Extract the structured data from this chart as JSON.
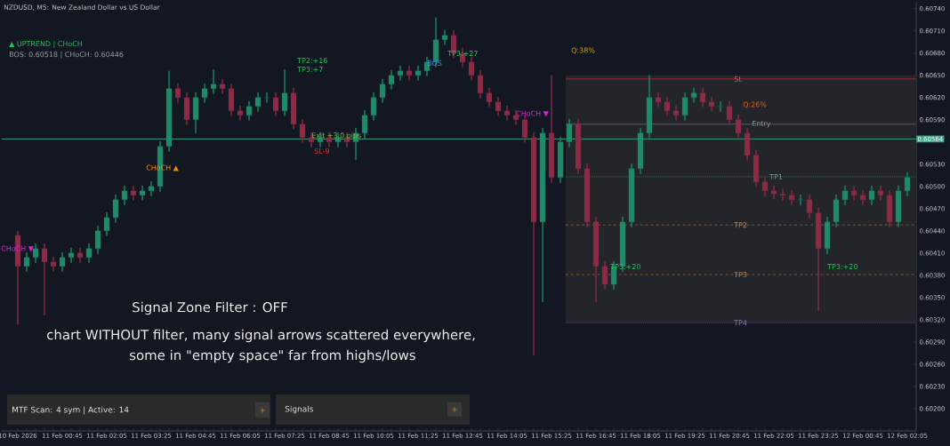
{
  "chart_data": {
    "type": "candlestick",
    "title": "NZDUSD, M5:  New Zealand Dollar vs US Dollar",
    "categories": [
      "10 Feb 2026",
      null,
      null,
      null,
      null,
      "11 Feb 00:45",
      null,
      null,
      null,
      null,
      "11 Feb 02:05",
      null,
      null,
      null,
      null,
      "11 Feb 03:25",
      null,
      null,
      null,
      null,
      "11 Feb 04:45",
      null,
      null,
      null,
      null,
      "11 Feb 06:05",
      null,
      null,
      null,
      null,
      "11 Feb 07:25",
      null,
      null,
      null,
      null,
      "11 Feb 08:45",
      null,
      null,
      null,
      null,
      "11 Feb 10:05",
      null,
      null,
      null,
      null,
      "11 Feb 11:25",
      null,
      null,
      null,
      null,
      "11 Feb 12:45",
      null,
      null,
      null,
      null,
      "11 Feb 14:05",
      null,
      null,
      null,
      null,
      "11 Feb 15:25",
      null,
      null,
      null,
      null,
      "11 Feb 16:45",
      null,
      null,
      null,
      null,
      "11 Feb 18:05",
      null,
      null,
      null,
      null,
      "11 Feb 19:25",
      null,
      null,
      null,
      null,
      "11 Feb 20:45",
      null,
      null,
      null,
      null,
      "11 Feb 22:05",
      null,
      null,
      null,
      null,
      "11 Feb 23:25",
      null,
      null,
      null,
      null,
      "12 Feb 00:45",
      null,
      null,
      null,
      null,
      "12 Feb 02:05"
    ],
    "ohlc": [
      [
        0.60434,
        0.6044,
        0.60314,
        0.60392
      ],
      [
        0.60392,
        0.60411,
        0.60385,
        0.60404
      ],
      [
        0.60404,
        0.60423,
        0.60397,
        0.60416
      ],
      [
        0.60416,
        0.60423,
        0.60326,
        0.60398
      ],
      [
        0.60398,
        0.60405,
        0.60385,
        0.60392
      ],
      [
        0.60392,
        0.60411,
        0.60385,
        0.60404
      ],
      [
        0.60404,
        0.60417,
        0.60397,
        0.6041
      ],
      [
        0.6041,
        0.60417,
        0.60397,
        0.60404
      ],
      [
        0.60404,
        0.60423,
        0.60397,
        0.60416
      ],
      [
        0.60416,
        0.60447,
        0.60409,
        0.6044
      ],
      [
        0.6044,
        0.60465,
        0.60433,
        0.60458
      ],
      [
        0.60458,
        0.60489,
        0.60451,
        0.60482
      ],
      [
        0.60482,
        0.60501,
        0.60475,
        0.60494
      ],
      [
        0.60494,
        0.60501,
        0.60481,
        0.60488
      ],
      [
        0.60488,
        0.60501,
        0.60481,
        0.60494
      ],
      [
        0.60494,
        0.60507,
        0.60487,
        0.605
      ],
      [
        0.605,
        0.60561,
        0.60493,
        0.60554
      ],
      [
        0.60554,
        0.60656,
        0.60547,
        0.60632
      ],
      [
        0.60632,
        0.60639,
        0.60613,
        0.6062
      ],
      [
        0.6062,
        0.60627,
        0.60583,
        0.6059
      ],
      [
        0.6059,
        0.60627,
        0.60572,
        0.6062
      ],
      [
        0.6062,
        0.60639,
        0.60613,
        0.60632
      ],
      [
        0.60632,
        0.60658,
        0.60625,
        0.60638
      ],
      [
        0.60638,
        0.60645,
        0.60625,
        0.60632
      ],
      [
        0.60632,
        0.60639,
        0.60595,
        0.60602
      ],
      [
        0.60602,
        0.60609,
        0.60589,
        0.60596
      ],
      [
        0.60596,
        0.60615,
        0.60589,
        0.60608
      ],
      [
        0.60608,
        0.60627,
        0.60601,
        0.6062
      ],
      [
        0.6062,
        0.60627,
        0.60613,
        0.6062
      ],
      [
        0.6062,
        0.60627,
        0.60595,
        0.60602
      ],
      [
        0.60602,
        0.60658,
        0.60595,
        0.60626
      ],
      [
        0.60626,
        0.60633,
        0.60577,
        0.60584
      ],
      [
        0.60584,
        0.60591,
        0.60559,
        0.60566
      ],
      [
        0.60566,
        0.60573,
        0.60553,
        0.6056
      ],
      [
        0.6056,
        0.60573,
        0.60553,
        0.60566
      ],
      [
        0.60566,
        0.60573,
        0.60553,
        0.6056
      ],
      [
        0.6056,
        0.60573,
        0.60553,
        0.60566
      ],
      [
        0.60566,
        0.60573,
        0.60553,
        0.6056
      ],
      [
        0.6056,
        0.60579,
        0.60536,
        0.60572
      ],
      [
        0.60572,
        0.60603,
        0.60565,
        0.60596
      ],
      [
        0.60596,
        0.60627,
        0.60589,
        0.6062
      ],
      [
        0.6062,
        0.60645,
        0.60613,
        0.60638
      ],
      [
        0.60638,
        0.60657,
        0.60631,
        0.6065
      ],
      [
        0.6065,
        0.60663,
        0.60643,
        0.60656
      ],
      [
        0.60656,
        0.60663,
        0.60643,
        0.6065
      ],
      [
        0.6065,
        0.60663,
        0.60643,
        0.60656
      ],
      [
        0.60656,
        0.60675,
        0.60649,
        0.60668
      ],
      [
        0.60668,
        0.60728,
        0.60661,
        0.60698
      ],
      [
        0.60698,
        0.60711,
        0.60691,
        0.60704
      ],
      [
        0.60704,
        0.60711,
        0.60673,
        0.6068
      ],
      [
        0.6068,
        0.60687,
        0.60661,
        0.60668
      ],
      [
        0.60668,
        0.60675,
        0.60643,
        0.6065
      ],
      [
        0.6065,
        0.60657,
        0.60619,
        0.60626
      ],
      [
        0.60626,
        0.60633,
        0.60607,
        0.60614
      ],
      [
        0.60614,
        0.60621,
        0.60595,
        0.60602
      ],
      [
        0.60602,
        0.60609,
        0.60589,
        0.60596
      ],
      [
        0.60596,
        0.60603,
        0.60583,
        0.6059
      ],
      [
        0.6059,
        0.60597,
        0.60559,
        0.60566
      ],
      [
        0.60566,
        0.60573,
        0.60272,
        0.60452
      ],
      [
        0.60452,
        0.60579,
        0.60344,
        0.60572
      ],
      [
        0.60572,
        0.6065,
        0.60505,
        0.60512
      ],
      [
        0.60512,
        0.60567,
        0.60505,
        0.6056
      ],
      [
        0.6056,
        0.60591,
        0.60553,
        0.60584
      ],
      [
        0.60584,
        0.60591,
        0.60517,
        0.60524
      ],
      [
        0.60524,
        0.60531,
        0.60445,
        0.60452
      ],
      [
        0.60452,
        0.60459,
        0.60344,
        0.60392
      ],
      [
        0.60392,
        0.60399,
        0.60361,
        0.60368
      ],
      [
        0.60368,
        0.60399,
        0.60361,
        0.60392
      ],
      [
        0.60392,
        0.60459,
        0.60385,
        0.60452
      ],
      [
        0.60452,
        0.60531,
        0.60445,
        0.60524
      ],
      [
        0.60524,
        0.60579,
        0.60517,
        0.60572
      ],
      [
        0.60572,
        0.6065,
        0.60565,
        0.6062
      ],
      [
        0.6062,
        0.60627,
        0.60607,
        0.60614
      ],
      [
        0.60614,
        0.60621,
        0.60595,
        0.60602
      ],
      [
        0.60602,
        0.60609,
        0.60589,
        0.60596
      ],
      [
        0.60596,
        0.60627,
        0.60589,
        0.6062
      ],
      [
        0.6062,
        0.60633,
        0.60613,
        0.60626
      ],
      [
        0.60626,
        0.60633,
        0.60607,
        0.60614
      ],
      [
        0.60614,
        0.60621,
        0.60601,
        0.60608
      ],
      [
        0.60608,
        0.60615,
        0.60601,
        0.60608
      ],
      [
        0.60608,
        0.60615,
        0.60583,
        0.6059
      ],
      [
        0.6059,
        0.60597,
        0.60565,
        0.60572
      ],
      [
        0.60572,
        0.60579,
        0.60535,
        0.60542
      ],
      [
        0.60542,
        0.60549,
        0.60499,
        0.60506
      ],
      [
        0.60506,
        0.60513,
        0.60487,
        0.60494
      ],
      [
        0.60494,
        0.60501,
        0.60483,
        0.6049
      ],
      [
        0.6049,
        0.60497,
        0.60481,
        0.60488
      ],
      [
        0.60488,
        0.60495,
        0.60475,
        0.60482
      ],
      [
        0.60482,
        0.60489,
        0.60475,
        0.60482
      ],
      [
        0.60482,
        0.60489,
        0.60457,
        0.60464
      ],
      [
        0.60464,
        0.60471,
        0.60332,
        0.60416
      ],
      [
        0.60416,
        0.60459,
        0.60409,
        0.60452
      ],
      [
        0.60452,
        0.60489,
        0.60445,
        0.60482
      ],
      [
        0.60482,
        0.60501,
        0.60475,
        0.60494
      ],
      [
        0.60494,
        0.60501,
        0.60481,
        0.60488
      ],
      [
        0.60488,
        0.60495,
        0.60475,
        0.60482
      ],
      [
        0.60482,
        0.60501,
        0.60475,
        0.60494
      ],
      [
        0.60494,
        0.60501,
        0.60481,
        0.60488
      ],
      [
        0.60488,
        0.60495,
        0.60445,
        0.60452
      ],
      [
        0.60452,
        0.60501,
        0.60445,
        0.60494
      ],
      [
        0.60494,
        0.60519,
        0.60487,
        0.60512
      ]
    ],
    "ylim": [
      0.6017,
      0.60748
    ],
    "yticks": [
      {
        "value": 0.602,
        "label": "0.60200"
      },
      {
        "value": 0.6023,
        "label": "0.60230"
      },
      {
        "value": 0.6026,
        "label": "0.60260"
      },
      {
        "value": 0.6029,
        "label": "0.60290"
      },
      {
        "value": 0.6032,
        "label": "0.60320"
      },
      {
        "value": 0.6035,
        "label": "0.60350"
      },
      {
        "value": 0.6038,
        "label": "0.60380"
      },
      {
        "value": 0.6041,
        "label": "0.60410"
      },
      {
        "value": 0.6044,
        "label": "0.60440"
      },
      {
        "value": 0.6047,
        "label": "0.60470"
      },
      {
        "value": 0.605,
        "label": "0.60500"
      },
      {
        "value": 0.6053,
        "label": "0.60530"
      },
      {
        "value": 0.6056,
        "label": null
      },
      {
        "value": 0.6059,
        "label": "0.60590"
      },
      {
        "value": 0.6062,
        "label": "0.60620"
      },
      {
        "value": 0.6065,
        "label": "0.60650"
      },
      {
        "value": 0.6068,
        "label": "0.60680"
      },
      {
        "value": 0.6071,
        "label": "0.60710"
      },
      {
        "value": 0.6074,
        "label": "0.60740"
      }
    ],
    "ref_lines": [
      {
        "axis": "y",
        "value": 0.60564,
        "label": "0.60564",
        "color": "#3aa88a",
        "line_style": "solid"
      },
      {
        "axis": "y",
        "value": 0.60645,
        "label": "SL",
        "color": "#b0202a",
        "line_style": "solid"
      },
      {
        "axis": "y",
        "value": 0.60584,
        "label": "Entry",
        "color": "#5a6478",
        "line_style": "solid"
      },
      {
        "axis": "y",
        "value": 0.60513,
        "label": "TP1",
        "color": "#3f7a5a",
        "line_style": "dotted"
      },
      {
        "axis": "y",
        "value": 0.60448,
        "label": "TP2",
        "color": "#9a5a1a",
        "line_style": "dashed"
      },
      {
        "axis": "y",
        "value": 0.60381,
        "label": "TP3",
        "color": "#9a5a1a",
        "line_style": "dashed"
      },
      {
        "axis": "y",
        "value": 0.60316,
        "label": "TP4",
        "color": "#6a3d9a",
        "line_style": "dotted"
      }
    ],
    "bands": [
      {
        "axis": "y",
        "from": 0.60316,
        "to": 0.6065,
        "color": "#24252a"
      }
    ],
    "annotations": [
      "▲ UPTREND | CHoCH",
      "BOS: 0.60518 | CHoCH: 0.60446",
      "Signal Zone Filter : OFF",
      "chart WITHOUT filter, many signal arrows scattered everywhere,",
      "some in \"empty space\" far from highs/lows",
      "CHoCH ▼",
      "CHoCH ▲",
      "TP2:+16",
      "TP3:+7",
      "Exit +3.0 pips",
      "SL-9",
      "BOS",
      "TP3:+27",
      "Q:38%",
      "CHoCH ▼",
      "TP3:+20",
      "Q:26%",
      "TP3:+20",
      "MTF Scan: 4 sym | Active: 14",
      "+",
      "Signals",
      "+"
    ]
  }
}
